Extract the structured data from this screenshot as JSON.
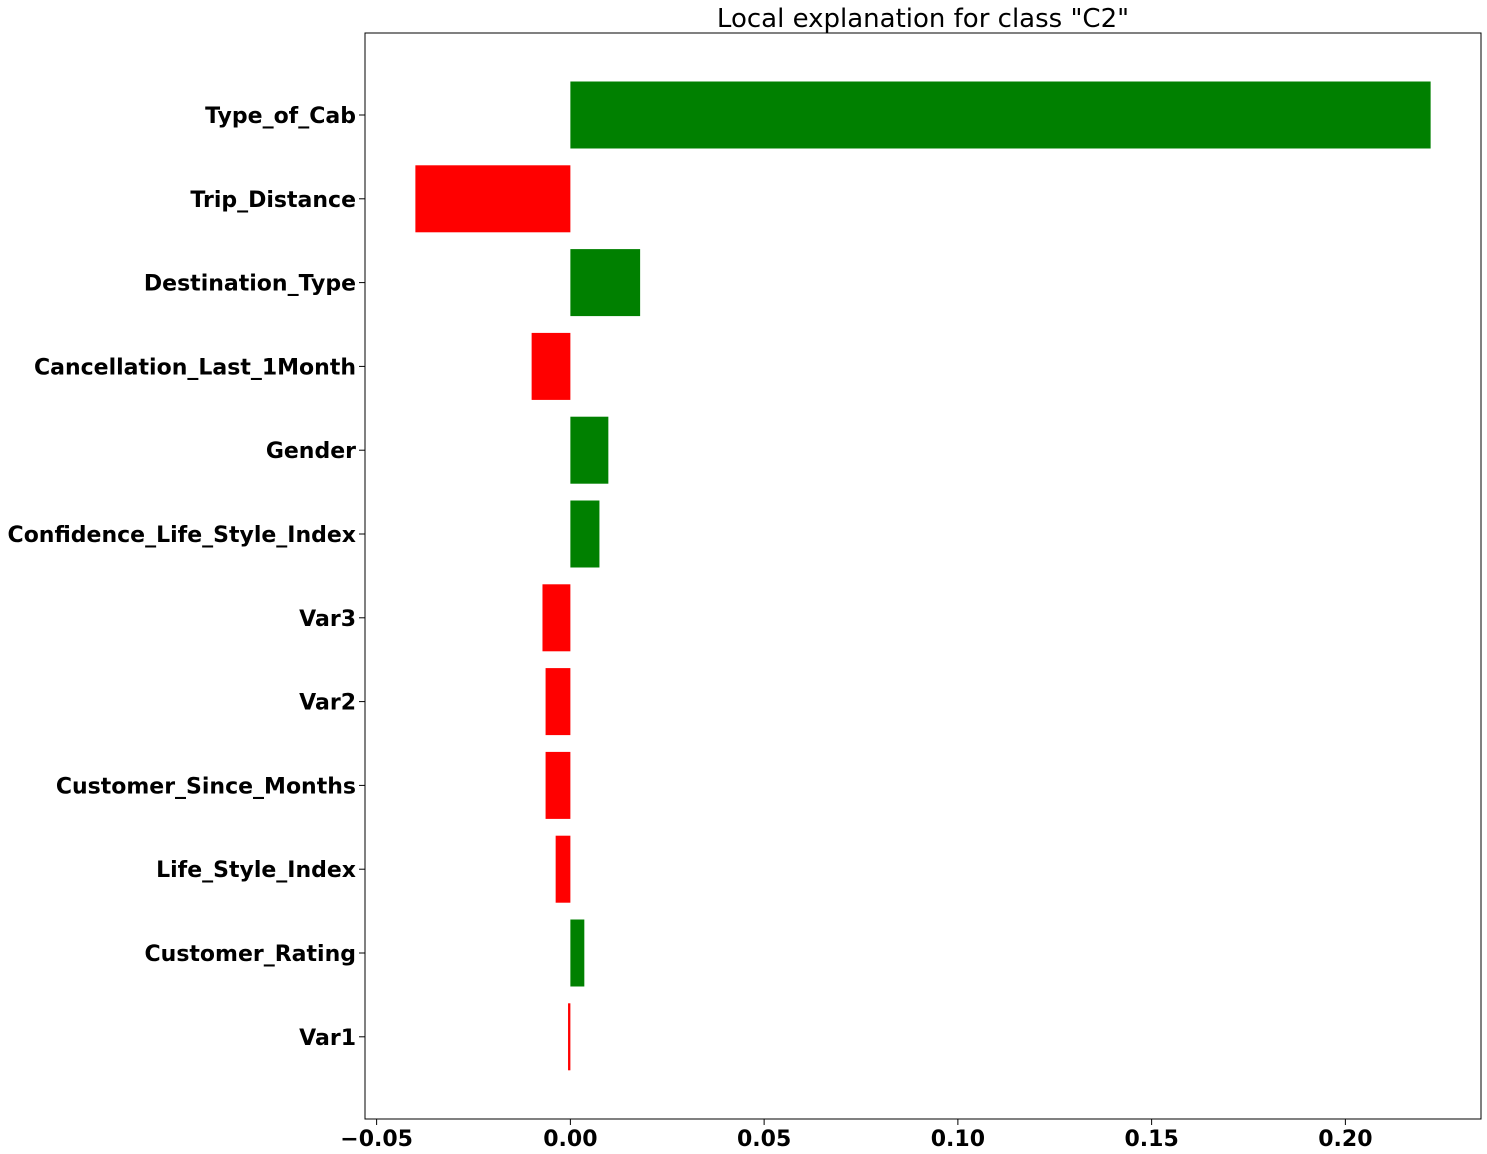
{
  "chart_data": {
    "type": "bar",
    "orientation": "horizontal",
    "title": "Local explanation for class \"C2\"",
    "xlabel": "",
    "ylabel": "",
    "categories": [
      "Type_of_Cab",
      "Trip_Distance",
      "Destination_Type",
      "Cancellation_Last_1Month",
      "Gender",
      "Confidence_Life_Style_Index",
      "Var3",
      "Var2",
      "Customer_Since_Months",
      "Life_Style_Index",
      "Customer_Rating",
      "Var1"
    ],
    "values": [
      0.222,
      -0.04,
      0.018,
      -0.01,
      0.0098,
      0.0075,
      -0.0072,
      -0.0064,
      -0.0064,
      -0.0038,
      0.0036,
      -0.0006
    ],
    "xlim": [
      -0.053,
      0.235
    ],
    "xticks": [
      -0.05,
      0.0,
      0.05,
      0.1,
      0.15,
      0.2
    ],
    "xtick_labels": [
      "−0.05",
      "0.00",
      "0.05",
      "0.10",
      "0.15",
      "0.20"
    ],
    "grid": false,
    "colors": {
      "positive": "#008000",
      "negative": "#ff0000"
    }
  }
}
